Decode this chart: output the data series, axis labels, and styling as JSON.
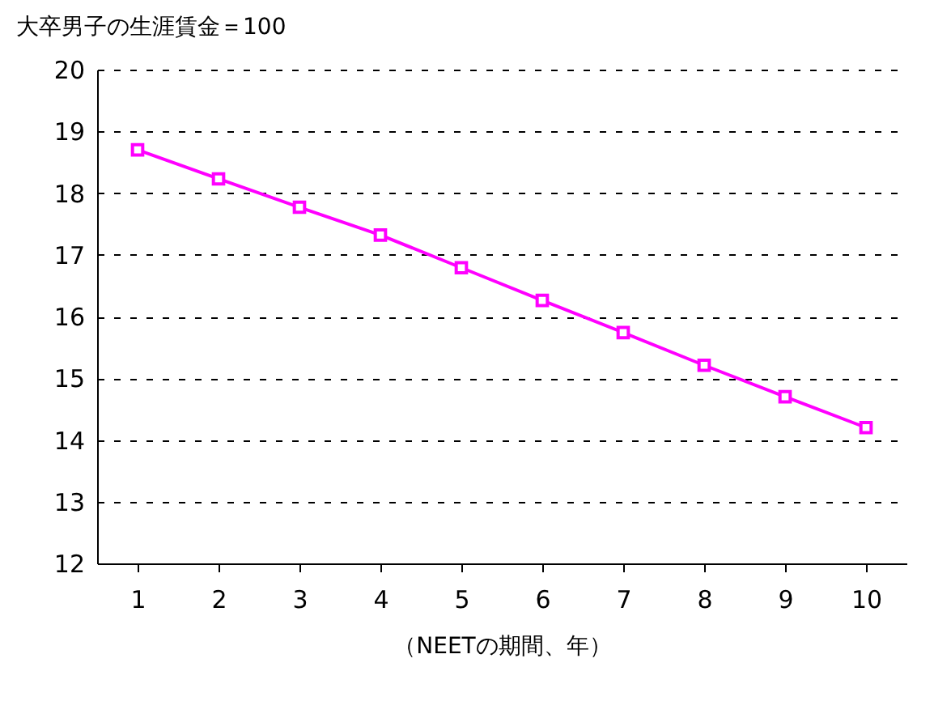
{
  "chart_data": {
    "type": "line",
    "title": "大卒男子の生涯賃金＝100",
    "xlabel": "（NEETの期間、年）",
    "categories": [
      "1",
      "2",
      "3",
      "4",
      "5",
      "6",
      "7",
      "8",
      "9",
      "10"
    ],
    "series": [
      {
        "color": "#ff00ff",
        "values": [
          18.7,
          18.23,
          17.77,
          17.32,
          16.79,
          16.26,
          15.74,
          15.21,
          14.7,
          14.2
        ]
      }
    ],
    "ylim": [
      12,
      20
    ],
    "yticks": [
      12,
      13,
      14,
      15,
      16,
      17,
      18,
      19,
      20
    ],
    "grid": "y",
    "marker": "square",
    "line_style": "solid"
  }
}
